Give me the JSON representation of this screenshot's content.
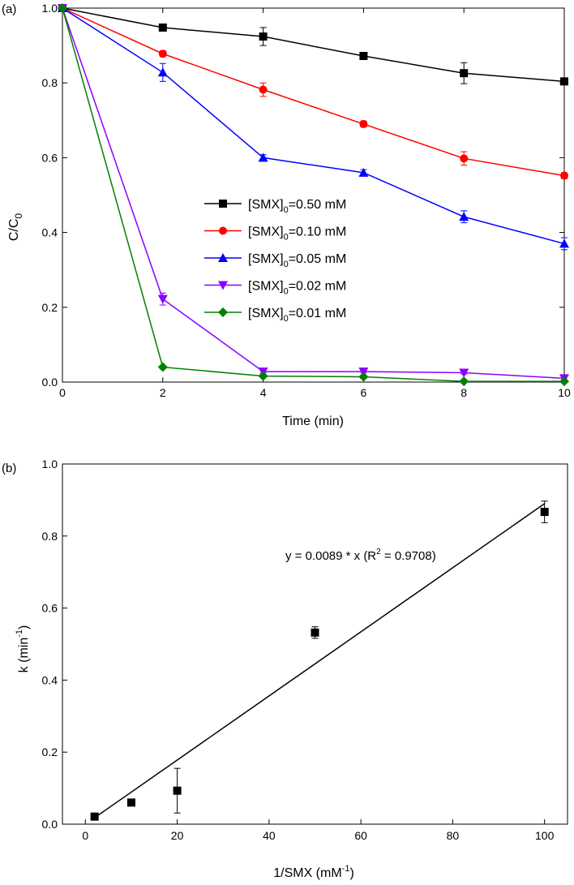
{
  "chart_data": [
    {
      "panel": "(a)",
      "type": "line",
      "title": "",
      "xlabel": "Time (min)",
      "ylabel": "C/C",
      "ylabel_sub": "0",
      "xlim": [
        0,
        10
      ],
      "ylim": [
        0,
        1
      ],
      "xticks": [
        0,
        2,
        4,
        6,
        8,
        10
      ],
      "yticks": [
        0.0,
        0.2,
        0.4,
        0.6,
        0.8,
        1.0
      ],
      "x": [
        0,
        2,
        4,
        6,
        8,
        10
      ],
      "series": [
        {
          "name": "[SMX]",
          "sub": "0",
          "suffix": "=0.50 mM",
          "color": "#000000",
          "marker": "square",
          "values": [
            1.0,
            0.948,
            0.924,
            0.872,
            0.826,
            0.804
          ],
          "errors": [
            0,
            0.008,
            0.024,
            0.008,
            0.028,
            0.008
          ]
        },
        {
          "name": "[SMX]",
          "sub": "0",
          "suffix": "=0.10 mM",
          "color": "#ff0000",
          "marker": "circle",
          "values": [
            1.0,
            0.878,
            0.782,
            0.69,
            0.598,
            0.552
          ],
          "errors": [
            0,
            0.008,
            0.018,
            0.008,
            0.018,
            0.008
          ]
        },
        {
          "name": "[SMX]",
          "sub": "0",
          "suffix": "=0.05 mM",
          "color": "#0000ff",
          "marker": "triangle-up",
          "values": [
            1.0,
            0.828,
            0.6,
            0.56,
            0.442,
            0.37
          ],
          "errors": [
            0,
            0.024,
            0.008,
            0.008,
            0.016,
            0.016
          ]
        },
        {
          "name": "[SMX]",
          "sub": "0",
          "suffix": "=0.02 mM",
          "color": "#8b00ff",
          "marker": "triangle-down",
          "values": [
            1.0,
            0.222,
            0.028,
            0.028,
            0.025,
            0.01
          ],
          "errors": [
            0,
            0.016,
            0.004,
            0.004,
            0.004,
            0.004
          ]
        },
        {
          "name": "[SMX]",
          "sub": "0",
          "suffix": "=0.01 mM",
          "color": "#008000",
          "marker": "diamond",
          "values": [
            1.0,
            0.04,
            0.016,
            0.014,
            0.002,
            0.002
          ],
          "errors": [
            0,
            0.004,
            0.004,
            0.004,
            0.002,
            0.002
          ]
        }
      ],
      "legend_position": "center-right"
    },
    {
      "panel": "(b)",
      "type": "scatter",
      "title": "",
      "xlabel": "1/SMX (mM",
      "xlabel_sup": "-1",
      "xlabel_end": ")",
      "ylabel": "k (min",
      "ylabel_sup": "-1",
      "ylabel_end": ")",
      "xlim": [
        -5,
        105
      ],
      "ylim": [
        0,
        1
      ],
      "xticks": [
        0,
        20,
        40,
        60,
        80,
        100
      ],
      "yticks": [
        0.0,
        0.2,
        0.4,
        0.6,
        0.8,
        1.0
      ],
      "points": {
        "x": [
          2,
          10,
          20,
          50,
          100
        ],
        "y": [
          0.021,
          0.06,
          0.093,
          0.532,
          0.867
        ],
        "errors": [
          0.004,
          0.006,
          0.062,
          0.016,
          0.03
        ],
        "color": "#000000",
        "marker": "square"
      },
      "fit": {
        "slope": 0.0089,
        "x_range": [
          2,
          100
        ],
        "color": "#000000"
      },
      "annotation": {
        "prefix": "y = 0.0089 * x (R",
        "sup": "2",
        "suffix": " = 0.9708)"
      }
    }
  ]
}
